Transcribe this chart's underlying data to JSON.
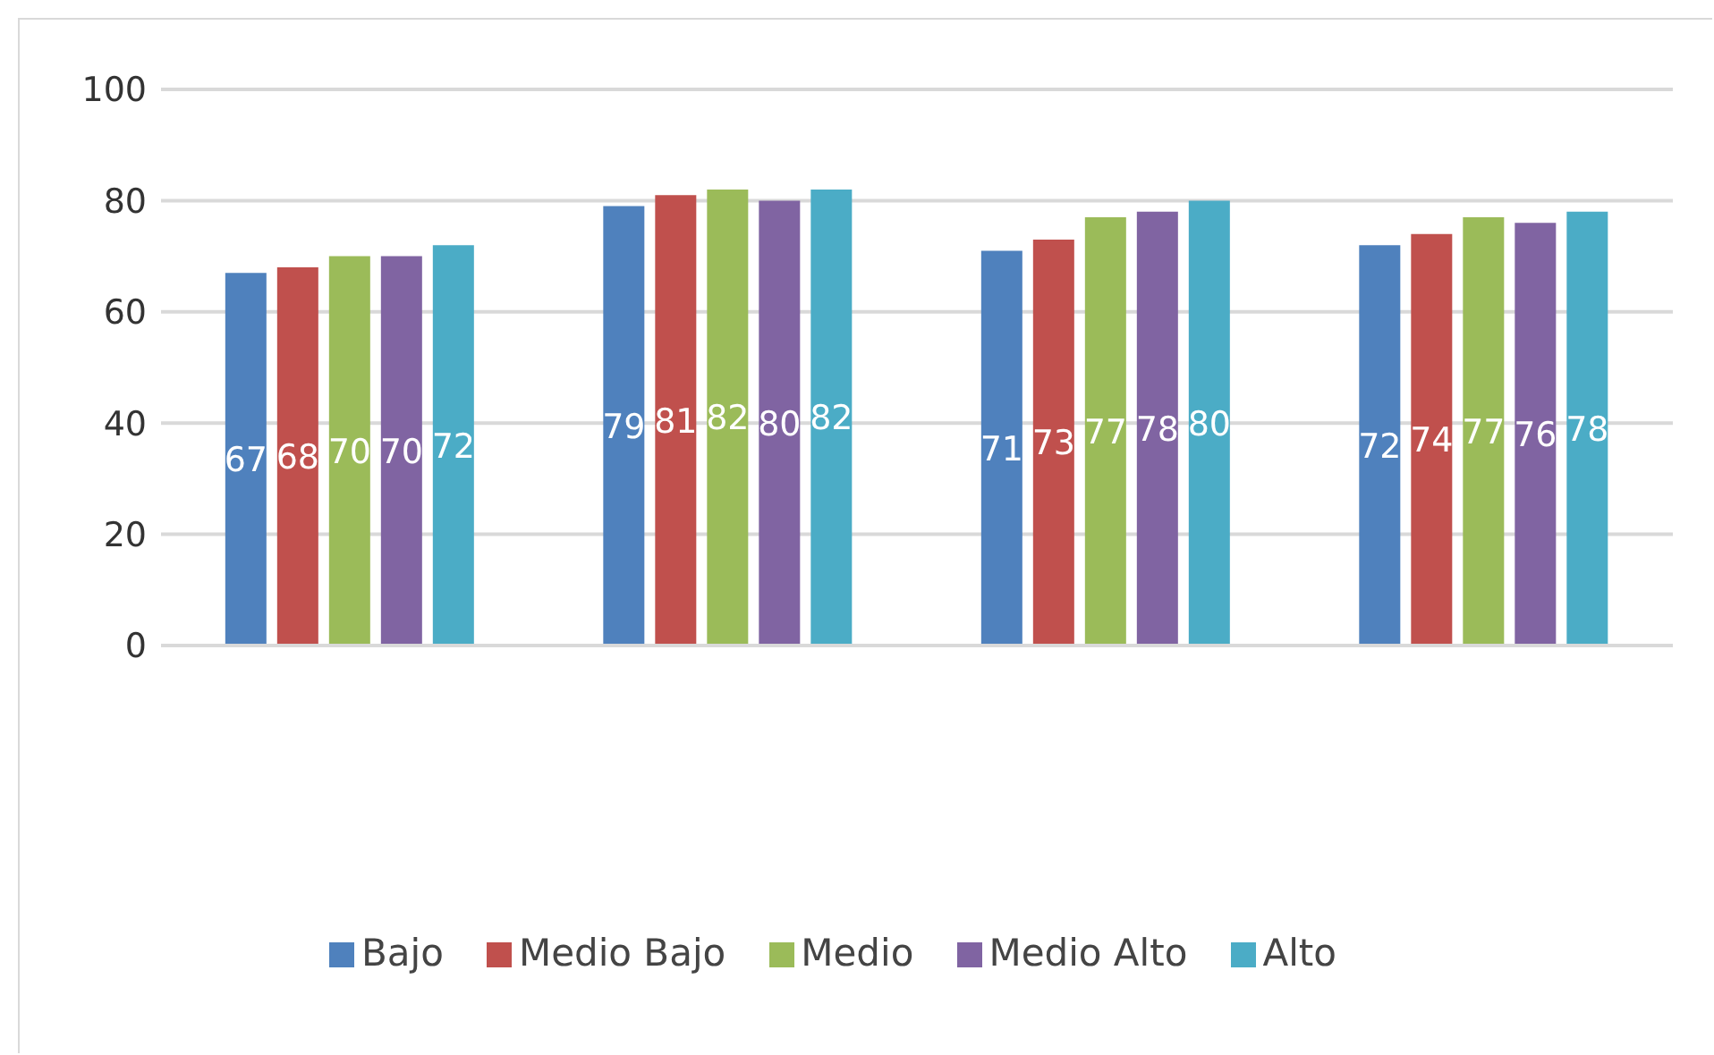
{
  "chart_data": {
    "type": "bar",
    "categories": [
      null,
      null,
      null,
      null
    ],
    "series": [
      {
        "name": "Bajo",
        "color": "#4f81bd",
        "values": [
          67,
          79,
          71,
          72
        ]
      },
      {
        "name": "Medio Bajo",
        "color": "#c0504d",
        "values": [
          68,
          81,
          73,
          74
        ]
      },
      {
        "name": "Medio",
        "color": "#9bbb59",
        "values": [
          70,
          82,
          77,
          77
        ]
      },
      {
        "name": "Medio Alto",
        "color": "#8064a2",
        "values": [
          70,
          80,
          78,
          76
        ]
      },
      {
        "name": "Alto",
        "color": "#4bacc6",
        "values": [
          72,
          82,
          80,
          78
        ]
      }
    ],
    "ylim": [
      0,
      100
    ],
    "yticks": [
      0,
      20,
      40,
      60,
      80,
      100
    ],
    "grid": "y",
    "legend": "bottom",
    "data_labels": true
  }
}
